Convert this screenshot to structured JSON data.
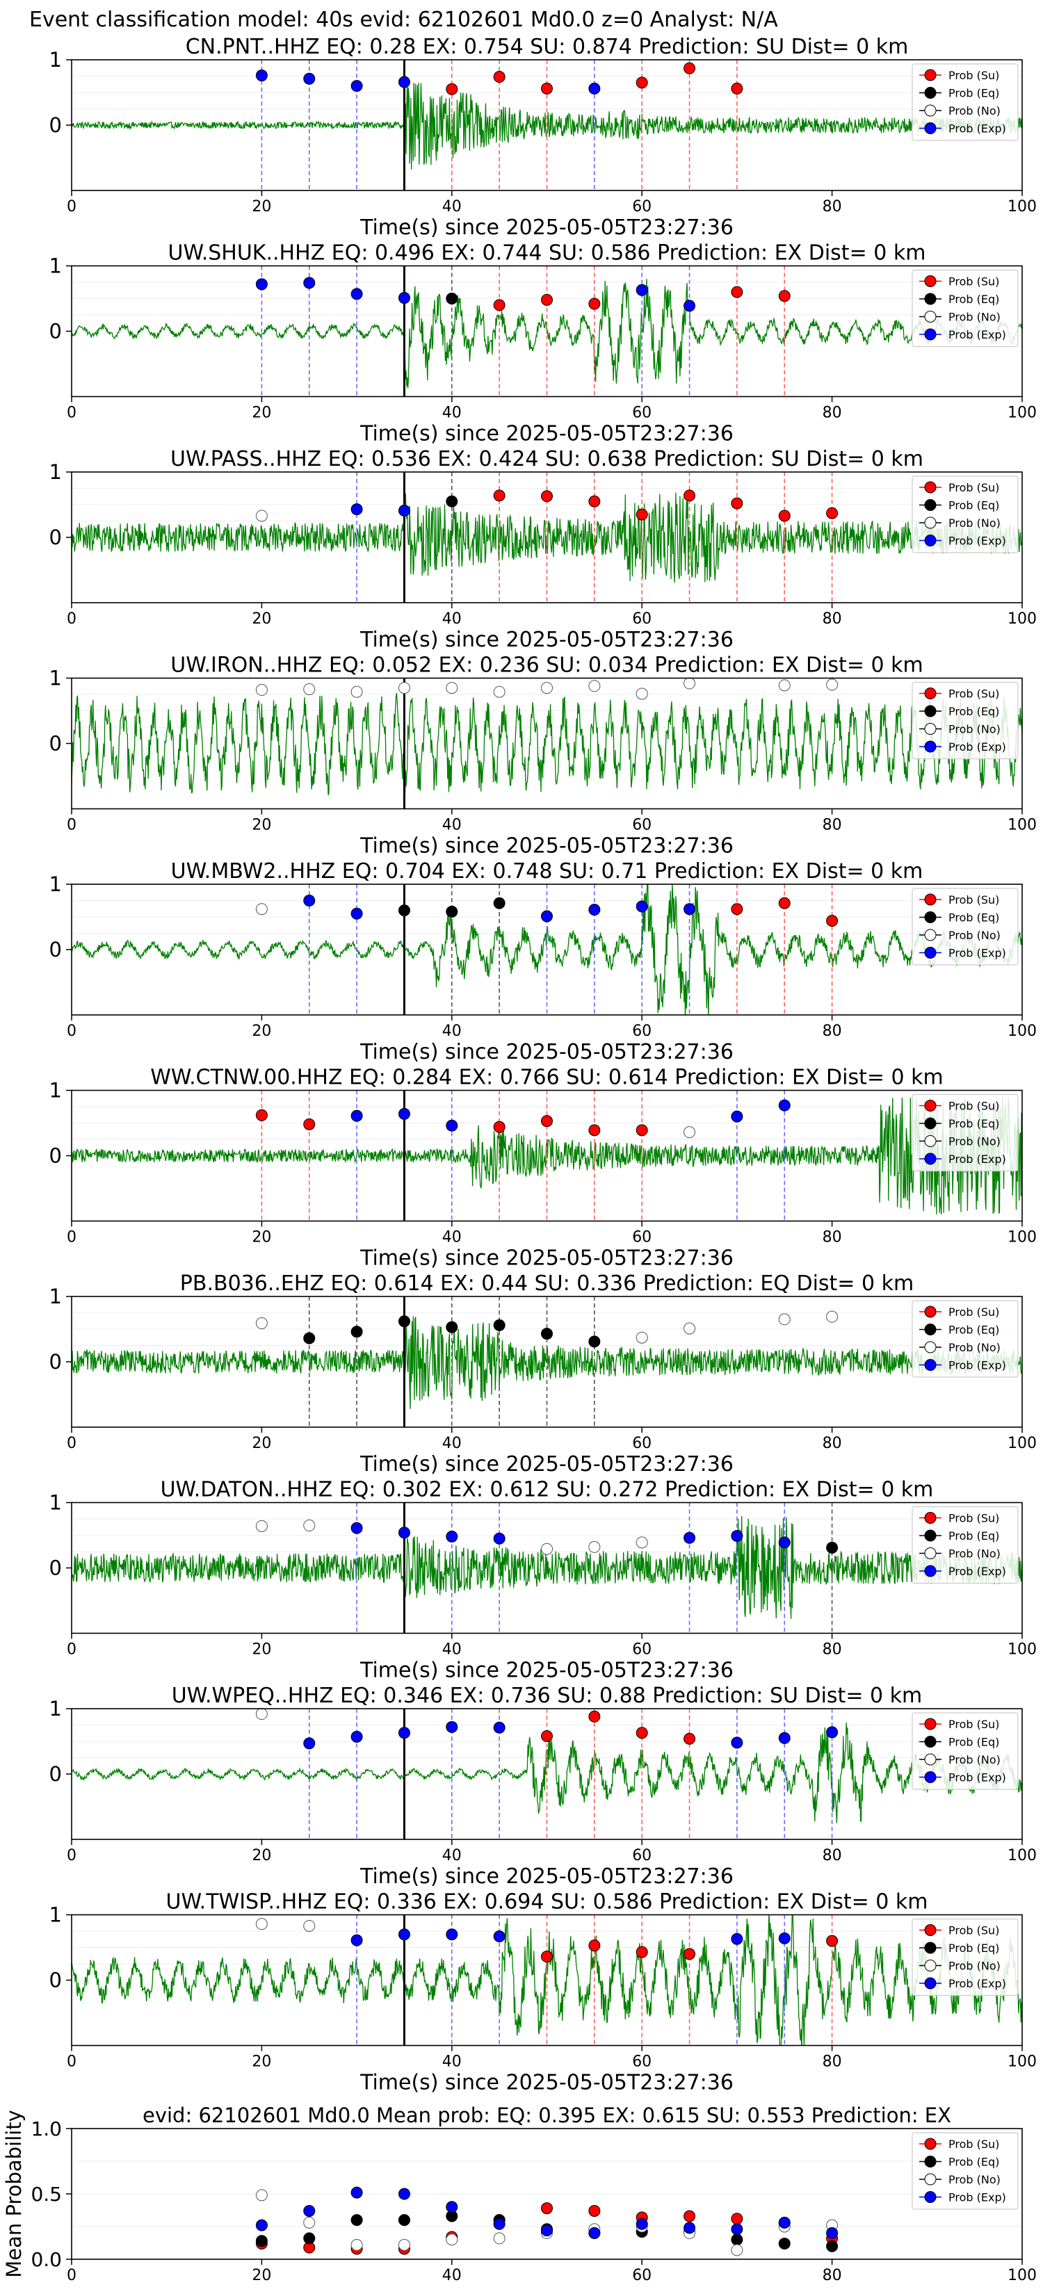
{
  "suptitle": "Event classification model: 40s evid: 62102601 Md0.0 z=0 Analyst: N/A",
  "colors": {
    "waveform": "#008000",
    "su": "#ff0000",
    "eq": "#000000",
    "no": "#ffffff",
    "exp": "#0000ff",
    "su_line": "#ff6060",
    "eq_line": "#555555",
    "exp_line": "#6a6aff",
    "event_line": "#000000"
  },
  "legend_labels": [
    "Prob (Su)",
    "Prob (Eq)",
    "Prob (No)",
    "Prob (Exp)"
  ],
  "xlabel": "Time(s) since 2025-05-05T23:27:36",
  "xlim": [
    0,
    100
  ],
  "ylim": [
    -1,
    1
  ],
  "xticks": [
    0,
    20,
    40,
    60,
    80,
    100
  ],
  "yticks": [
    0,
    1
  ],
  "event_time": 35,
  "chart_data": [
    {
      "type": "line",
      "title": "CN.PNT..HHZ   EQ: 0.28   EX: 0.754   SU: 0.874   Prediction: SU    Dist= 0 km",
      "waveform": {
        "base": 0.05,
        "onset": 35,
        "peak": 0.85,
        "end": 0.12,
        "bursts": [
          [
            36,
            42,
            0.5
          ],
          [
            56,
            60,
            0.22
          ]
        ],
        "period": 0
      },
      "points": [
        {
          "t": 20,
          "p": 0.76,
          "c": "exp"
        },
        {
          "t": 25,
          "p": 0.71,
          "c": "exp"
        },
        {
          "t": 30,
          "p": 0.6,
          "c": "exp"
        },
        {
          "t": 35,
          "p": 0.66,
          "c": "exp"
        },
        {
          "t": 40,
          "p": 0.55,
          "c": "su"
        },
        {
          "t": 45,
          "p": 0.74,
          "c": "su"
        },
        {
          "t": 50,
          "p": 0.56,
          "c": "su"
        },
        {
          "t": 55,
          "p": 0.56,
          "c": "exp"
        },
        {
          "t": 60,
          "p": 0.65,
          "c": "su"
        },
        {
          "t": 65,
          "p": 0.87,
          "c": "su"
        },
        {
          "t": 70,
          "p": 0.56,
          "c": "su"
        }
      ]
    },
    {
      "type": "line",
      "title": "UW.SHUK..HHZ   EQ: 0.496  EX: 0.744  SU: 0.586   Prediction: EX    Dist= 0 km",
      "waveform": {
        "base": 0.08,
        "onset": 35,
        "peak": 0.7,
        "end": 0.14,
        "bursts": [
          [
            55,
            65,
            0.6
          ]
        ],
        "period": 2.2
      },
      "points": [
        {
          "t": 20,
          "p": 0.72,
          "c": "exp"
        },
        {
          "t": 25,
          "p": 0.74,
          "c": "exp"
        },
        {
          "t": 30,
          "p": 0.57,
          "c": "exp"
        },
        {
          "t": 35,
          "p": 0.51,
          "c": "exp"
        },
        {
          "t": 40,
          "p": 0.5,
          "c": "eq"
        },
        {
          "t": 45,
          "p": 0.4,
          "c": "su"
        },
        {
          "t": 50,
          "p": 0.48,
          "c": "su"
        },
        {
          "t": 55,
          "p": 0.42,
          "c": "su"
        },
        {
          "t": 60,
          "p": 0.63,
          "c": "exp"
        },
        {
          "t": 65,
          "p": 0.39,
          "c": "exp"
        },
        {
          "t": 70,
          "p": 0.6,
          "c": "su"
        },
        {
          "t": 75,
          "p": 0.54,
          "c": "su"
        }
      ]
    },
    {
      "type": "line",
      "title": "UW.PASS..HHZ   EQ: 0.536  EX: 0.424  SU: 0.638   Prediction: SU    Dist= 0 km",
      "waveform": {
        "base": 0.22,
        "onset": 35,
        "peak": 0.75,
        "end": 0.25,
        "bursts": [
          [
            58,
            68,
            0.7
          ]
        ],
        "period": 0
      },
      "points": [
        {
          "t": 20,
          "p": 0.33,
          "c": "no"
        },
        {
          "t": 30,
          "p": 0.43,
          "c": "exp"
        },
        {
          "t": 35,
          "p": 0.41,
          "c": "exp"
        },
        {
          "t": 40,
          "p": 0.55,
          "c": "eq"
        },
        {
          "t": 45,
          "p": 0.64,
          "c": "su"
        },
        {
          "t": 50,
          "p": 0.63,
          "c": "su"
        },
        {
          "t": 55,
          "p": 0.55,
          "c": "su"
        },
        {
          "t": 60,
          "p": 0.35,
          "c": "su"
        },
        {
          "t": 65,
          "p": 0.64,
          "c": "su"
        },
        {
          "t": 70,
          "p": 0.52,
          "c": "su"
        },
        {
          "t": 75,
          "p": 0.33,
          "c": "su"
        },
        {
          "t": 80,
          "p": 0.37,
          "c": "su"
        }
      ]
    },
    {
      "type": "line",
      "title": "UW.IRON..HHZ   EQ: 0.052  EX: 0.236  SU: 0.034   Prediction: EX    Dist= 0 km",
      "waveform": {
        "base": 0.55,
        "onset": 35,
        "peak": 0.6,
        "end": 0.5,
        "bursts": [],
        "period": 1.6
      },
      "points": [
        {
          "t": 20,
          "p": 0.82,
          "c": "no"
        },
        {
          "t": 25,
          "p": 0.83,
          "c": "no"
        },
        {
          "t": 30,
          "p": 0.79,
          "c": "no"
        },
        {
          "t": 35,
          "p": 0.85,
          "c": "no"
        },
        {
          "t": 40,
          "p": 0.85,
          "c": "no"
        },
        {
          "t": 45,
          "p": 0.79,
          "c": "no"
        },
        {
          "t": 50,
          "p": 0.85,
          "c": "no"
        },
        {
          "t": 55,
          "p": 0.88,
          "c": "no"
        },
        {
          "t": 60,
          "p": 0.76,
          "c": "no"
        },
        {
          "t": 65,
          "p": 0.92,
          "c": "no"
        },
        {
          "t": 75,
          "p": 0.89,
          "c": "no"
        },
        {
          "t": 80,
          "p": 0.9,
          "c": "no"
        }
      ]
    },
    {
      "type": "line",
      "title": "UW.MBW2..HHZ   EQ: 0.704  EX: 0.748  SU: 0.71   Prediction: EX    Dist= 0 km",
      "waveform": {
        "base": 0.1,
        "onset": 38,
        "peak": 0.45,
        "end": 0.2,
        "bursts": [
          [
            60,
            68,
            0.75
          ]
        ],
        "period": 2.6
      },
      "points": [
        {
          "t": 20,
          "p": 0.62,
          "c": "no"
        },
        {
          "t": 25,
          "p": 0.75,
          "c": "exp"
        },
        {
          "t": 30,
          "p": 0.55,
          "c": "exp"
        },
        {
          "t": 35,
          "p": 0.6,
          "c": "eq"
        },
        {
          "t": 40,
          "p": 0.58,
          "c": "eq"
        },
        {
          "t": 45,
          "p": 0.71,
          "c": "eq"
        },
        {
          "t": 50,
          "p": 0.51,
          "c": "exp"
        },
        {
          "t": 55,
          "p": 0.61,
          "c": "exp"
        },
        {
          "t": 60,
          "p": 0.66,
          "c": "exp"
        },
        {
          "t": 65,
          "p": 0.62,
          "c": "exp"
        },
        {
          "t": 70,
          "p": 0.62,
          "c": "su"
        },
        {
          "t": 75,
          "p": 0.71,
          "c": "su"
        },
        {
          "t": 80,
          "p": 0.44,
          "c": "su"
        }
      ]
    },
    {
      "type": "line",
      "title": "WW.CTNW.00.HHZ   EQ: 0.284  EX: 0.766  SU: 0.614   Prediction: EX    Dist= 0 km",
      "waveform": {
        "base": 0.1,
        "onset": 42,
        "peak": 0.6,
        "end": 0.15,
        "bursts": [
          [
            85,
            100,
            0.9
          ]
        ],
        "period": 0
      },
      "points": [
        {
          "t": 20,
          "p": 0.62,
          "c": "su"
        },
        {
          "t": 25,
          "p": 0.48,
          "c": "su"
        },
        {
          "t": 30,
          "p": 0.61,
          "c": "exp"
        },
        {
          "t": 35,
          "p": 0.64,
          "c": "exp"
        },
        {
          "t": 40,
          "p": 0.46,
          "c": "exp"
        },
        {
          "t": 45,
          "p": 0.44,
          "c": "su"
        },
        {
          "t": 50,
          "p": 0.53,
          "c": "su"
        },
        {
          "t": 55,
          "p": 0.39,
          "c": "su"
        },
        {
          "t": 60,
          "p": 0.39,
          "c": "su"
        },
        {
          "t": 65,
          "p": 0.36,
          "c": "no"
        },
        {
          "t": 70,
          "p": 0.6,
          "c": "exp"
        },
        {
          "t": 75,
          "p": 0.77,
          "c": "exp"
        }
      ]
    },
    {
      "type": "line",
      "title": "PB.B036..EHZ   EQ: 0.614  EX: 0.44  SU: 0.336   Prediction: EQ    Dist= 0 km",
      "waveform": {
        "base": 0.18,
        "onset": 35,
        "peak": 0.8,
        "end": 0.2,
        "bursts": [
          [
            39,
            45,
            0.6
          ]
        ],
        "period": 0
      },
      "points": [
        {
          "t": 20,
          "p": 0.59,
          "c": "no"
        },
        {
          "t": 25,
          "p": 0.36,
          "c": "eq"
        },
        {
          "t": 30,
          "p": 0.46,
          "c": "eq"
        },
        {
          "t": 35,
          "p": 0.62,
          "c": "eq"
        },
        {
          "t": 40,
          "p": 0.53,
          "c": "eq"
        },
        {
          "t": 45,
          "p": 0.56,
          "c": "eq"
        },
        {
          "t": 50,
          "p": 0.43,
          "c": "eq"
        },
        {
          "t": 55,
          "p": 0.31,
          "c": "eq"
        },
        {
          "t": 60,
          "p": 0.37,
          "c": "no"
        },
        {
          "t": 65,
          "p": 0.51,
          "c": "no"
        },
        {
          "t": 75,
          "p": 0.65,
          "c": "no"
        },
        {
          "t": 80,
          "p": 0.69,
          "c": "no"
        }
      ]
    },
    {
      "type": "line",
      "title": "UW.DATON..HHZ   EQ: 0.302  EX: 0.612  SU: 0.272   Prediction: EX    Dist= 0 km",
      "waveform": {
        "base": 0.22,
        "onset": 35,
        "peak": 0.55,
        "end": 0.25,
        "bursts": [
          [
            70,
            76,
            0.8
          ]
        ],
        "period": 0
      },
      "points": [
        {
          "t": 20,
          "p": 0.64,
          "c": "no"
        },
        {
          "t": 25,
          "p": 0.65,
          "c": "no"
        },
        {
          "t": 30,
          "p": 0.61,
          "c": "exp"
        },
        {
          "t": 35,
          "p": 0.54,
          "c": "exp"
        },
        {
          "t": 40,
          "p": 0.48,
          "c": "exp"
        },
        {
          "t": 45,
          "p": 0.45,
          "c": "exp"
        },
        {
          "t": 50,
          "p": 0.29,
          "c": "no"
        },
        {
          "t": 55,
          "p": 0.32,
          "c": "no"
        },
        {
          "t": 60,
          "p": 0.39,
          "c": "no"
        },
        {
          "t": 65,
          "p": 0.46,
          "c": "exp"
        },
        {
          "t": 70,
          "p": 0.49,
          "c": "exp"
        },
        {
          "t": 75,
          "p": 0.39,
          "c": "exp"
        },
        {
          "t": 80,
          "p": 0.31,
          "c": "eq"
        }
      ]
    },
    {
      "type": "line",
      "title": "UW.WPEQ..HHZ   EQ: 0.346  EX: 0.736  SU: 0.88   Prediction: SU    Dist= 0 km",
      "waveform": {
        "base": 0.06,
        "onset": 48,
        "peak": 0.5,
        "end": 0.22,
        "bursts": [
          [
            78,
            84,
            0.6
          ]
        ],
        "period": 2.4
      },
      "points": [
        {
          "t": 20,
          "p": 0.92,
          "c": "no"
        },
        {
          "t": 25,
          "p": 0.47,
          "c": "exp"
        },
        {
          "t": 30,
          "p": 0.57,
          "c": "exp"
        },
        {
          "t": 35,
          "p": 0.63,
          "c": "exp"
        },
        {
          "t": 40,
          "p": 0.72,
          "c": "exp"
        },
        {
          "t": 45,
          "p": 0.71,
          "c": "exp"
        },
        {
          "t": 50,
          "p": 0.58,
          "c": "su"
        },
        {
          "t": 55,
          "p": 0.88,
          "c": "su"
        },
        {
          "t": 60,
          "p": 0.63,
          "c": "su"
        },
        {
          "t": 65,
          "p": 0.54,
          "c": "su"
        },
        {
          "t": 70,
          "p": 0.48,
          "c": "exp"
        },
        {
          "t": 75,
          "p": 0.55,
          "c": "exp"
        },
        {
          "t": 80,
          "p": 0.64,
          "c": "exp"
        }
      ]
    },
    {
      "type": "line",
      "title": "UW.TWISP..HHZ   EQ: 0.336  EX: 0.694  SU: 0.586   Prediction: EX    Dist= 0 km",
      "waveform": {
        "base": 0.25,
        "onset": 45,
        "peak": 0.7,
        "end": 0.45,
        "bursts": [
          [
            70,
            78,
            0.8
          ]
        ],
        "period": 2.3
      },
      "points": [
        {
          "t": 20,
          "p": 0.86,
          "c": "no"
        },
        {
          "t": 25,
          "p": 0.83,
          "c": "no"
        },
        {
          "t": 30,
          "p": 0.61,
          "c": "exp"
        },
        {
          "t": 35,
          "p": 0.7,
          "c": "exp"
        },
        {
          "t": 40,
          "p": 0.7,
          "c": "exp"
        },
        {
          "t": 45,
          "p": 0.67,
          "c": "exp"
        },
        {
          "t": 50,
          "p": 0.36,
          "c": "su"
        },
        {
          "t": 55,
          "p": 0.53,
          "c": "su"
        },
        {
          "t": 60,
          "p": 0.43,
          "c": "su"
        },
        {
          "t": 65,
          "p": 0.4,
          "c": "su"
        },
        {
          "t": 70,
          "p": 0.63,
          "c": "exp"
        },
        {
          "t": 75,
          "p": 0.64,
          "c": "exp"
        },
        {
          "t": 80,
          "p": 0.6,
          "c": "su"
        }
      ]
    },
    {
      "type": "scatter",
      "title": "evid: 62102601   Md0.0   Mean prob:   EQ: 0.395  EX: 0.615  SU: 0.553   Prediction: EX",
      "ylabel": "Mean Probability",
      "ylim": [
        0,
        1
      ],
      "yticks": [
        "0.0",
        "0.5",
        "1.0"
      ],
      "x": [
        20,
        25,
        30,
        35,
        40,
        45,
        50,
        55,
        60,
        65,
        70,
        75,
        80
      ],
      "series": [
        {
          "name": "Prob (Su)",
          "c": "su",
          "values": [
            0.12,
            0.09,
            0.08,
            0.08,
            0.17,
            0.3,
            0.39,
            0.37,
            0.32,
            0.33,
            0.31,
            0.28,
            0.16
          ]
        },
        {
          "name": "Prob (Eq)",
          "c": "eq",
          "values": [
            0.14,
            0.16,
            0.3,
            0.3,
            0.33,
            0.3,
            0.23,
            0.2,
            0.21,
            0.21,
            0.15,
            0.12,
            0.1
          ]
        },
        {
          "name": "Prob (No)",
          "c": "no",
          "values": [
            0.49,
            0.28,
            0.11,
            0.11,
            0.15,
            0.16,
            0.2,
            0.23,
            0.25,
            0.2,
            0.07,
            0.25,
            0.26
          ]
        },
        {
          "name": "Prob (Exp)",
          "c": "exp",
          "values": [
            0.26,
            0.37,
            0.51,
            0.5,
            0.4,
            0.27,
            0.22,
            0.2,
            0.27,
            0.24,
            0.23,
            0.28,
            0.2
          ]
        }
      ]
    }
  ]
}
